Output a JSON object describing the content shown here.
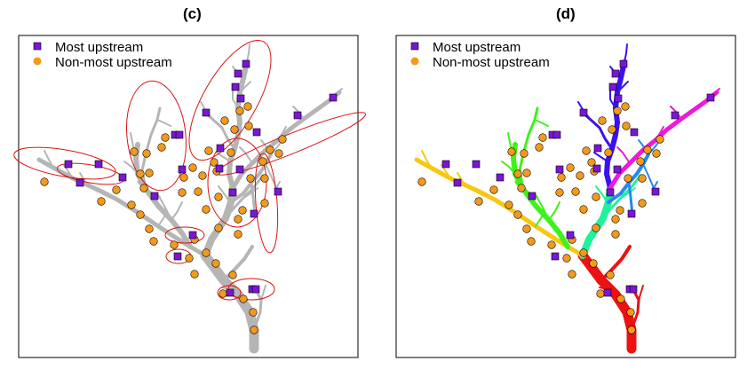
{
  "panels": [
    {
      "title": "(c)"
    },
    {
      "title": "(d)"
    }
  ],
  "legend": {
    "most_upstream": "Most upstream",
    "non_most_upstream": "Non-most upstream"
  },
  "colors": {
    "most_upstream_fill": "#7b16d6",
    "non_most_upstream_fill": "#f39a1a",
    "river_gray": "#b5b5b5",
    "ellipse": "#d81414",
    "basin_red": "#ee1111",
    "basin_yellow": "#f7c80f",
    "basin_green": "#3ef21b",
    "basin_mint": "#1ff29a",
    "basin_blue": "#2a86ee",
    "basin_indigo": "#3b12ee",
    "basin_magenta": "#ee1ad8"
  }
}
